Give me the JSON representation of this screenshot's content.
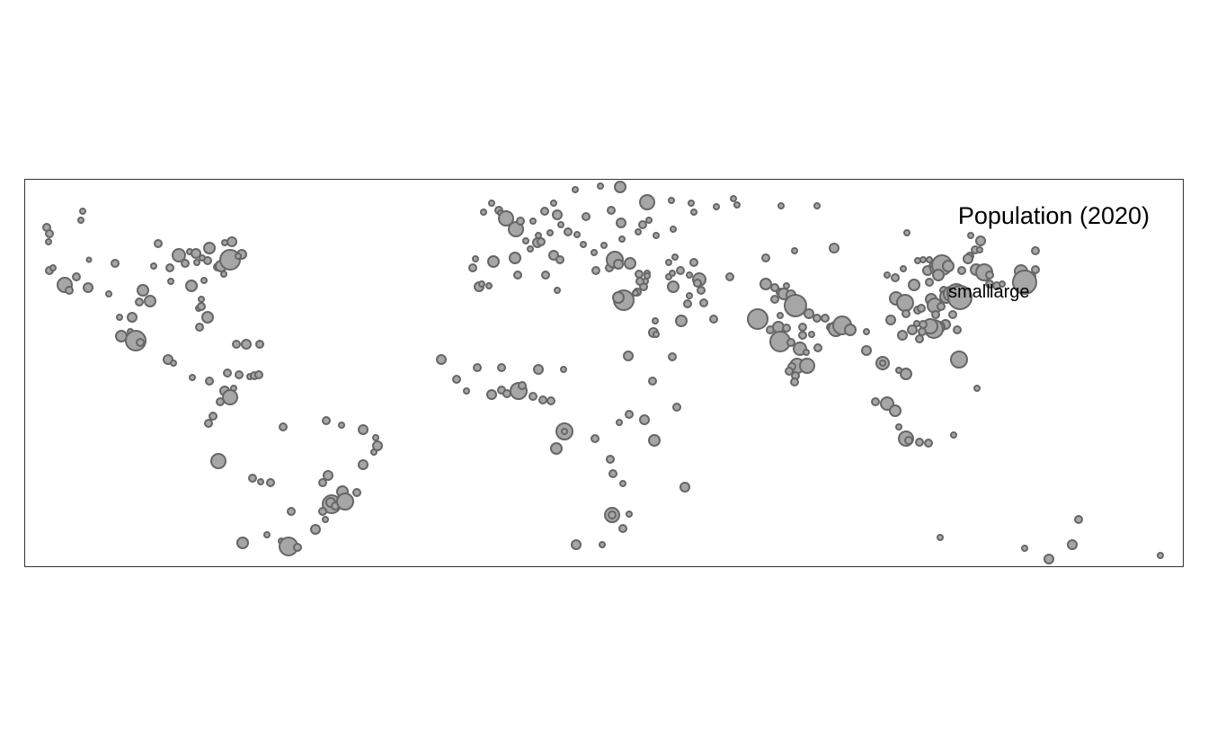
{
  "legend": {
    "title": "Population (2020)",
    "small_label": "small",
    "large_label": "large"
  },
  "colors": {
    "bubble_fill": "#a6a6a6",
    "bubble_stroke": "#666666",
    "frame": "#333333"
  }
}
